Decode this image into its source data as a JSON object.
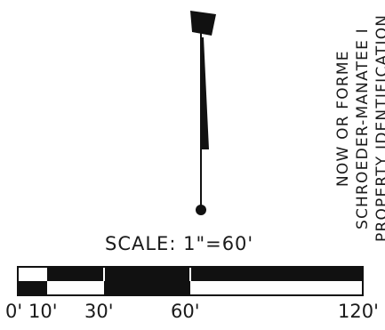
{
  "north_arrow": {
    "icon": "north-arrow-icon"
  },
  "owner_note": {
    "line1": "NOW OR FORME",
    "line2": "SCHROEDER-MANATEE I",
    "line3": "PROPERTY IDENTIFICATION"
  },
  "scale_bar": {
    "title": "SCALE:  1\"=60'",
    "ticks": [
      {
        "label": "0'",
        "value": 0
      },
      {
        "label": "10'",
        "value": 10
      },
      {
        "label": "30'",
        "value": 30
      },
      {
        "label": "60'",
        "value": 60
      },
      {
        "label": "120'",
        "value": 120
      }
    ]
  },
  "colors": {
    "ink": "#111111",
    "paper": "#ffffff"
  }
}
